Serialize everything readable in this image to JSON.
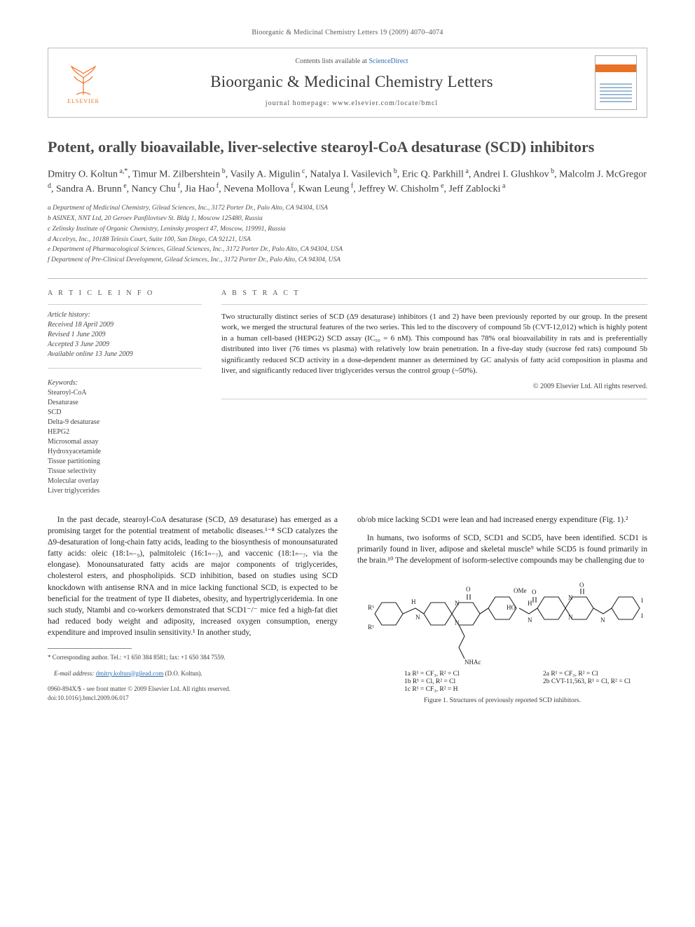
{
  "journal_ref": "Bioorganic & Medicinal Chemistry Letters 19 (2009) 4070–4074",
  "masthead": {
    "publisher": "ELSEVIER",
    "contents_prefix": "Contents lists available at ",
    "contents_link": "ScienceDirect",
    "journal_title": "Bioorganic & Medicinal Chemistry Letters",
    "homepage_label": "journal homepage: www.elsevier.com/locate/bmcl"
  },
  "title": "Potent, orally bioavailable, liver-selective stearoyl-CoA desaturase (SCD) inhibitors",
  "authors_html": "Dmitry O. Koltun<sup> a,*</sup>, Timur M. Zilbershtein<sup> b</sup>, Vasily A. Migulin<sup> c</sup>, Natalya I. Vasilevich<sup> b</sup>, Eric Q. Parkhill<sup> a</sup>, Andrei I. Glushkov<sup> b</sup>, Malcolm J. McGregor<sup> d</sup>, Sandra A. Brunn<sup> e</sup>, Nancy Chu<sup> f</sup>, Jia Hao<sup> f</sup>, Nevena Mollova<sup> f</sup>, Kwan Leung<sup> f</sup>, Jeffrey W. Chisholm<sup> e</sup>, Jeff Zablocki<sup> a</sup>",
  "affiliations": [
    "a Department of Medicinal Chemistry, Gilead Sciences, Inc., 3172 Porter Dr., Palo Alto, CA 94304, USA",
    "b ASINEX, NNT Ltd, 20 Geroev Panfilovtsev St. Bldg 1, Moscow 125480, Russia",
    "c Zelinsky Institute of Organic Chemistry, Leninsky prospect 47, Moscow, 119991, Russia",
    "d Accelrys, Inc., 10188 Telesis Court, Suite 100, San Diego, CA 92121, USA",
    "e Department of Pharmacological Sciences, Gilead Sciences, Inc., 3172 Porter Dr., Palo Alto, CA 94304, USA",
    "f Department of Pre-Clinical Development, Gilead Sciences, Inc., 3172 Porter Dr., Palo Alto, CA 94304, USA"
  ],
  "article_info": {
    "heading": "A R T I C L E   I N F O",
    "history_label": "Article history:",
    "received": "Received 18 April 2009",
    "revised": "Revised 1 June 2009",
    "accepted": "Accepted 3 June 2009",
    "online": "Available online 13 June 2009",
    "keywords_label": "Keywords:",
    "keywords": [
      "Stearoyl-CoA",
      "Desaturase",
      "SCD",
      "Delta-9 desaturase",
      "HEPG2",
      "Microsomal assay",
      "Hydroxyacetamide",
      "Tissue partitioning",
      "Tissue selectivity",
      "Molecular overlay",
      "Liver triglycerides"
    ]
  },
  "abstract": {
    "heading": "A B S T R A C T",
    "text": "Two structurally distinct series of SCD (Δ9 desaturase) inhibitors (1 and 2) have been previously reported by our group. In the present work, we merged the structural features of the two series. This led to the discovery of compound 5b (CVT-12,012) which is highly potent in a human cell-based (HEPG2) SCD assay (IC₅₀ = 6 nM). This compound has 78% oral bioavailability in rats and is preferentially distributed into liver (76 times vs plasma) with relatively low brain penetration. In a five-day study (sucrose fed rats) compound 5b significantly reduced SCD activity in a dose-dependent manner as determined by GC analysis of fatty acid composition in plasma and liver, and significantly reduced liver triglycerides versus the control group (~50%).",
    "copyright": "© 2009 Elsevier Ltd. All rights reserved."
  },
  "body": {
    "p1": "In the past decade, stearoyl-CoA desaturase (SCD, Δ9 desaturase) has emerged as a promising target for the potential treatment of metabolic diseases.¹⁻⁸ SCD catalyzes the Δ9-desaturation of long-chain fatty acids, leading to the biosynthesis of monounsaturated fatty acids: oleic (18:1ₙ₋₉), palmitoleic (16:1ₙ₋₇), and vaccenic (18:1ₙ₋₇, via the elongase). Monounsaturated fatty acids are major components of triglycerides, cholesterol esters, and phospholipids. SCD inhibition, based on studies using SCD knockdown with antisense RNA and in mice lacking functional SCD, is expected to be beneficial for the treatment of type II diabetes, obesity, and hypertriglyceridemia. In one such study, Ntambi and co-workers demonstrated that SCD1⁻/⁻ mice fed a high-fat diet had reduced body weight and adiposity, increased oxygen consumption, energy expenditure and improved insulin sensitivity.¹ In another study,",
    "p2": "ob/ob mice lacking SCD1 were lean and had increased energy expenditure (Fig. 1).²",
    "p3": "In humans, two isoforms of SCD, SCD1 and SCD5, have been identified. SCD1 is primarily found in liver, adipose and skeletal muscle⁹ while SCD5 is found primarily in the brain.¹⁰ The development of isoform-selective compounds may be challenging due to"
  },
  "footnote": {
    "corr": "* Corresponding author. Tel.: +1 650 384 8581; fax: +1 650 384 7559.",
    "email_label": "E-mail address:",
    "email": "dmitry.koltun@gilead.com",
    "email_suffix": "(D.O. Koltun)."
  },
  "bottom": {
    "issn": "0960-894X/$ - see front matter © 2009 Elsevier Ltd. All rights reserved.",
    "doi": "doi:10.1016/j.bmcl.2009.06.017"
  },
  "figure1": {
    "caption": "Figure 1. Structures of previously reported SCD inhibitors.",
    "left_labels": [
      "1a R¹ = CF₃, R² = Cl",
      "1b R¹ = Cl, R² = Cl",
      "1c R¹ = CF₃, R² = H"
    ],
    "right_labels": [
      "2a R¹ = CF₃, R² = Cl",
      "2b CVT-11,563, R¹ = Cl, R² = Cl"
    ],
    "ome": "OMe",
    "nhac": "NHAc"
  },
  "style": {
    "text_color": "#262626",
    "link_color": "#2a6db5",
    "rule_color": "#bcbcbc",
    "pub_accent": "#f37021"
  }
}
